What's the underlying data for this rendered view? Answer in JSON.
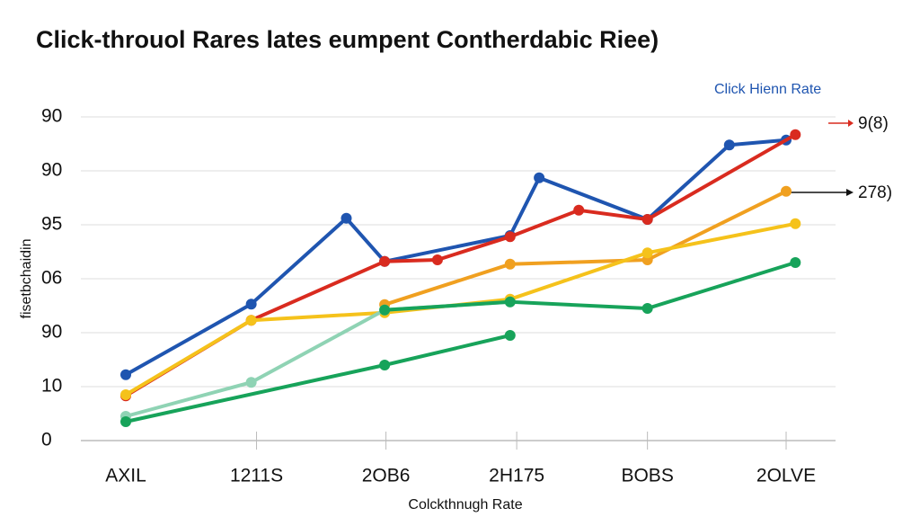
{
  "chart_data": {
    "type": "line",
    "title": "Click-throuol Rares lates eumpent Contherdabic Riee)",
    "x_label": "Colckthnugh Rate",
    "y_label": "fisetbchaidin",
    "annotations": [
      "9(8)",
      "278)"
    ],
    "xlim": [
      0,
      5
    ],
    "xticks": [
      {
        "value": 0,
        "label": "AXIL"
      },
      {
        "value": 0.99,
        "label": "1211S"
      },
      {
        "value": 1.97,
        "label": "2OB6"
      },
      {
        "value": 2.96,
        "label": "2H175"
      },
      {
        "value": 3.95,
        "label": "BOBS"
      },
      {
        "value": 5,
        "label": "2OLVE"
      }
    ],
    "ylim": [
      0,
      6
    ],
    "yticks": [
      {
        "value": 0,
        "label": "0"
      },
      {
        "value": 1,
        "label": "10"
      },
      {
        "value": 2,
        "label": "90"
      },
      {
        "value": 3,
        "label": "06"
      },
      {
        "value": 4,
        "label": "95"
      },
      {
        "value": 5,
        "label": "90"
      },
      {
        "value": 6,
        "label": "90"
      }
    ],
    "grid": true,
    "series": [
      {
        "name": "Click Hienn Rate",
        "color": "#1f55b0",
        "x": [
          0,
          0.95,
          1.67,
          1.96,
          2.91,
          3.13,
          3.95,
          4.57,
          5.0
        ],
        "values": [
          1.22,
          2.53,
          4.12,
          3.32,
          3.8,
          4.87,
          4.1,
          5.48,
          5.57
        ]
      },
      {
        "color": "#d92b1f",
        "x": [
          0,
          0.95,
          1.96,
          2.36,
          2.91,
          3.43,
          3.95,
          5.07
        ],
        "values": [
          0.83,
          2.23,
          3.32,
          3.35,
          3.78,
          4.27,
          4.1,
          5.67
        ]
      },
      {
        "color": "#f0a020",
        "x": [
          1.96,
          2.91,
          3.95,
          5.0
        ],
        "values": [
          2.52,
          3.27,
          3.35,
          4.62
        ]
      },
      {
        "color": "#f5c21b",
        "x": [
          0,
          0.95,
          1.96,
          2.91,
          3.95,
          5.07
        ],
        "values": [
          0.85,
          2.23,
          2.37,
          2.62,
          3.48,
          4.02
        ]
      },
      {
        "color": "#8fd3b4",
        "x": [
          0,
          0.95,
          1.96,
          2.91
        ],
        "values": [
          0.45,
          1.08,
          2.42,
          2.57
        ]
      },
      {
        "color": "#17a35a",
        "x": [
          0,
          1.96,
          2.91
        ],
        "values": [
          0.35,
          1.4,
          1.95
        ]
      },
      {
        "color": "#17a35a",
        "x": [
          1.96,
          2.91,
          3.95,
          5.07
        ],
        "values": [
          2.42,
          2.57,
          2.45,
          3.3
        ]
      }
    ]
  }
}
